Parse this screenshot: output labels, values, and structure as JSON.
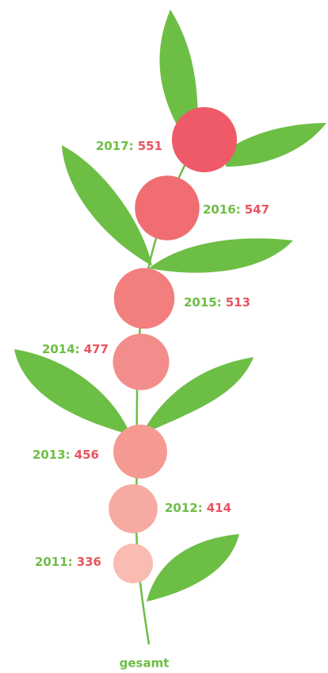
{
  "chart_data": {
    "type": "bubble",
    "title": "gesamt",
    "categories": [
      "2011:",
      "2012:",
      "2013:",
      "2014:",
      "2015:",
      "2016:",
      "2017:"
    ],
    "values": [
      336,
      414,
      456,
      477,
      513,
      547,
      551
    ],
    "colors": [
      "#f8bcb2",
      "#f6aaa2",
      "#f59a93",
      "#f38d8b",
      "#f27e7e",
      "#f06e72",
      "#ee5a67"
    ],
    "label_color": "#6dbe45",
    "value_color": "#e9545f"
  }
}
